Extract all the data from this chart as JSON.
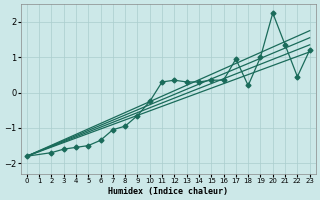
{
  "xlabel": "Humidex (Indice chaleur)",
  "ylabel": "",
  "background_color": "#cce8e8",
  "grid_color": "#aacece",
  "line_color": "#1a6b5a",
  "xlim": [
    -0.5,
    23.5
  ],
  "ylim": [
    -2.3,
    2.5
  ],
  "yticks": [
    -2,
    -1,
    0,
    1,
    2
  ],
  "xticks": [
    0,
    1,
    2,
    3,
    4,
    5,
    6,
    7,
    8,
    9,
    10,
    11,
    12,
    13,
    14,
    15,
    16,
    17,
    18,
    19,
    20,
    21,
    22,
    23
  ],
  "lines": [
    {
      "x": [
        0,
        2,
        3,
        4,
        5,
        6,
        7,
        8,
        9,
        10,
        11,
        12,
        13,
        14,
        15,
        16,
        17,
        18,
        19,
        20,
        21,
        22,
        23
      ],
      "y": [
        -1.8,
        -1.7,
        -1.6,
        -1.55,
        -1.5,
        -1.35,
        -1.05,
        -0.95,
        -0.65,
        -0.25,
        0.3,
        0.35,
        0.3,
        0.3,
        0.35,
        0.35,
        0.95,
        0.2,
        1.0,
        2.25,
        1.35,
        0.45,
        1.2
      ],
      "marker": "D",
      "markersize": 2.5,
      "linewidth": 0.9
    },
    {
      "x": [
        0,
        23
      ],
      "y": [
        -1.8,
        1.15
      ],
      "marker": null,
      "markersize": 0,
      "linewidth": 0.9
    },
    {
      "x": [
        0,
        23
      ],
      "y": [
        -1.8,
        1.35
      ],
      "marker": null,
      "markersize": 0,
      "linewidth": 0.9
    },
    {
      "x": [
        0,
        23
      ],
      "y": [
        -1.8,
        1.55
      ],
      "marker": null,
      "markersize": 0,
      "linewidth": 0.9
    },
    {
      "x": [
        0,
        23
      ],
      "y": [
        -1.8,
        1.75
      ],
      "marker": null,
      "markersize": 0,
      "linewidth": 0.9
    }
  ]
}
